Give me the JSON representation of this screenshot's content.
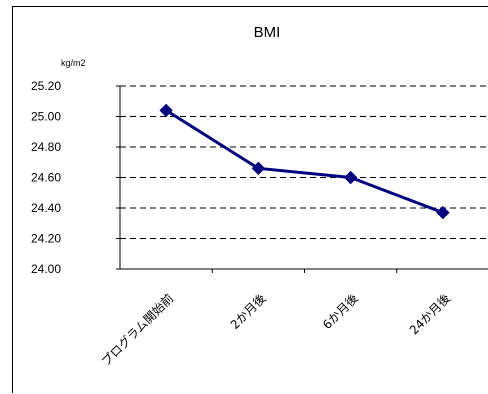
{
  "chart_data": {
    "type": "line",
    "title": "BMI",
    "y_unit": "kg/m2",
    "categories": [
      "プログラム開始前",
      "2か月後",
      "6か月後",
      "24か月後"
    ],
    "series": [
      {
        "values": [
          25.04,
          24.66,
          24.6,
          24.37
        ]
      }
    ],
    "ylim": [
      24.0,
      25.2
    ],
    "yticks": [
      "24.00",
      "24.20",
      "24.40",
      "24.60",
      "24.80",
      "25.00",
      "25.20"
    ],
    "grid": "dashed horizontal",
    "legend": "none",
    "colors": {
      "line": "#000080",
      "marker": "#000080",
      "grid": "#000000"
    }
  }
}
